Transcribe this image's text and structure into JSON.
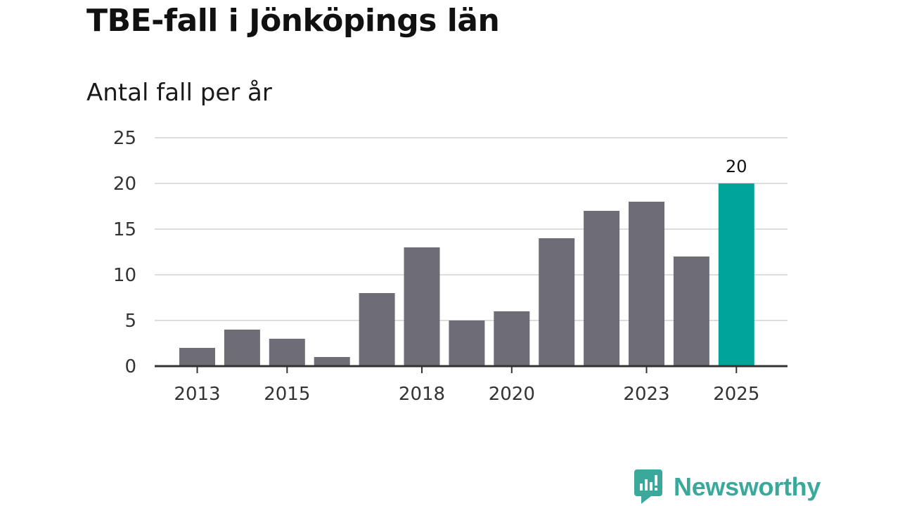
{
  "title": "TBE-fall i Jönköpings län",
  "subtitle": "Antal fall per år",
  "brand": {
    "name": "Newsworthy",
    "color": "#3aa99c",
    "icon": "newsworthy-logo-icon"
  },
  "colors": {
    "bar": "#6e6d75",
    "highlight": "#00a499",
    "grid": "#dddddd",
    "axis": "#333333"
  },
  "chart_data": {
    "type": "bar",
    "title": "TBE-fall i Jönköpings län",
    "subtitle": "Antal fall per år",
    "xlabel": "",
    "ylabel": "",
    "categories": [
      "2013",
      "2014",
      "2015",
      "2016",
      "2017",
      "2018",
      "2019",
      "2020",
      "2021",
      "2022",
      "2023",
      "2024",
      "2025"
    ],
    "values": [
      2,
      4,
      3,
      1,
      8,
      13,
      5,
      6,
      14,
      17,
      18,
      12,
      20
    ],
    "highlight_index": 12,
    "data_labels": [
      {
        "index": 12,
        "text": "20"
      }
    ],
    "x_tick_labels": [
      "2013",
      "2015",
      "2018",
      "2020",
      "2023",
      "2025"
    ],
    "y_ticks": [
      0,
      5,
      10,
      15,
      20,
      25
    ],
    "ylim": [
      0,
      25
    ],
    "grid": true,
    "legend": "none"
  }
}
